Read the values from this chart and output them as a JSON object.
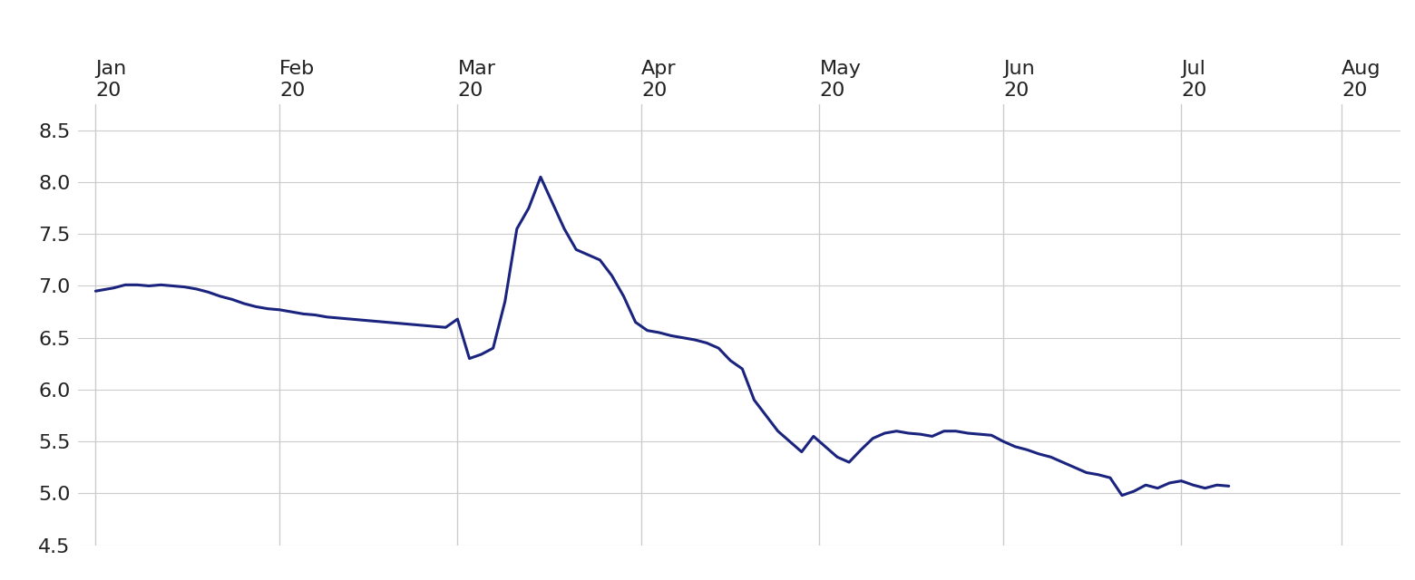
{
  "background_color": "#ffffff",
  "line_color": "#1a237e",
  "line_width": 2.2,
  "ylim": [
    4.5,
    8.75
  ],
  "yticks": [
    4.5,
    5.0,
    5.5,
    6.0,
    6.5,
    7.0,
    7.5,
    8.0,
    8.5
  ],
  "grid_color": "#cccccc",
  "tick_color": "#222222",
  "tick_fontsize": 16,
  "series": [
    [
      0,
      6.95
    ],
    [
      1,
      6.96
    ],
    [
      3,
      6.98
    ],
    [
      5,
      7.01
    ],
    [
      7,
      7.01
    ],
    [
      9,
      7.0
    ],
    [
      11,
      7.01
    ],
    [
      13,
      7.0
    ],
    [
      15,
      6.99
    ],
    [
      17,
      6.97
    ],
    [
      19,
      6.94
    ],
    [
      21,
      6.9
    ],
    [
      23,
      6.87
    ],
    [
      25,
      6.83
    ],
    [
      27,
      6.8
    ],
    [
      29,
      6.78
    ],
    [
      31,
      6.77
    ],
    [
      33,
      6.75
    ],
    [
      35,
      6.73
    ],
    [
      37,
      6.72
    ],
    [
      39,
      6.7
    ],
    [
      41,
      6.69
    ],
    [
      43,
      6.68
    ],
    [
      45,
      6.67
    ],
    [
      47,
      6.66
    ],
    [
      49,
      6.65
    ],
    [
      51,
      6.64
    ],
    [
      53,
      6.63
    ],
    [
      55,
      6.62
    ],
    [
      57,
      6.61
    ],
    [
      59,
      6.6
    ],
    [
      61,
      6.68
    ],
    [
      63,
      6.3
    ],
    [
      65,
      6.34
    ],
    [
      67,
      6.4
    ],
    [
      69,
      6.85
    ],
    [
      71,
      7.55
    ],
    [
      73,
      7.75
    ],
    [
      75,
      8.05
    ],
    [
      77,
      7.8
    ],
    [
      79,
      7.55
    ],
    [
      81,
      7.35
    ],
    [
      83,
      7.3
    ],
    [
      85,
      7.25
    ],
    [
      87,
      7.1
    ],
    [
      89,
      6.9
    ],
    [
      91,
      6.65
    ],
    [
      93,
      6.57
    ],
    [
      95,
      6.55
    ],
    [
      97,
      6.52
    ],
    [
      99,
      6.5
    ],
    [
      101,
      6.48
    ],
    [
      103,
      6.45
    ],
    [
      105,
      6.4
    ],
    [
      107,
      6.28
    ],
    [
      109,
      6.2
    ],
    [
      111,
      5.9
    ],
    [
      113,
      5.75
    ],
    [
      115,
      5.6
    ],
    [
      117,
      5.5
    ],
    [
      119,
      5.4
    ],
    [
      121,
      5.55
    ],
    [
      123,
      5.45
    ],
    [
      125,
      5.35
    ],
    [
      127,
      5.3
    ],
    [
      129,
      5.42
    ],
    [
      131,
      5.53
    ],
    [
      133,
      5.58
    ],
    [
      135,
      5.6
    ],
    [
      137,
      5.58
    ],
    [
      139,
      5.57
    ],
    [
      141,
      5.55
    ],
    [
      143,
      5.6
    ],
    [
      145,
      5.6
    ],
    [
      147,
      5.58
    ],
    [
      149,
      5.57
    ],
    [
      151,
      5.56
    ],
    [
      153,
      5.5
    ],
    [
      155,
      5.45
    ],
    [
      157,
      5.42
    ],
    [
      159,
      5.38
    ],
    [
      161,
      5.35
    ],
    [
      163,
      5.3
    ],
    [
      165,
      5.25
    ],
    [
      167,
      5.2
    ],
    [
      169,
      5.18
    ],
    [
      171,
      5.15
    ],
    [
      173,
      4.98
    ],
    [
      175,
      5.02
    ],
    [
      177,
      5.08
    ],
    [
      179,
      5.05
    ],
    [
      181,
      5.1
    ],
    [
      183,
      5.12
    ],
    [
      185,
      5.08
    ],
    [
      187,
      5.05
    ],
    [
      189,
      5.08
    ],
    [
      191,
      5.07
    ]
  ],
  "x_tick_positions": [
    0,
    31,
    61,
    92,
    122,
    153,
    183,
    210
  ],
  "x_tick_labels": [
    "Jan\n20",
    "Feb\n20",
    "Mar\n20",
    "Apr\n20",
    "May\n20",
    "Jun\n20",
    "Jul\n20",
    "Aug\n20"
  ],
  "vline_positions": [
    0,
    31,
    61,
    92,
    122,
    153,
    183,
    210
  ]
}
